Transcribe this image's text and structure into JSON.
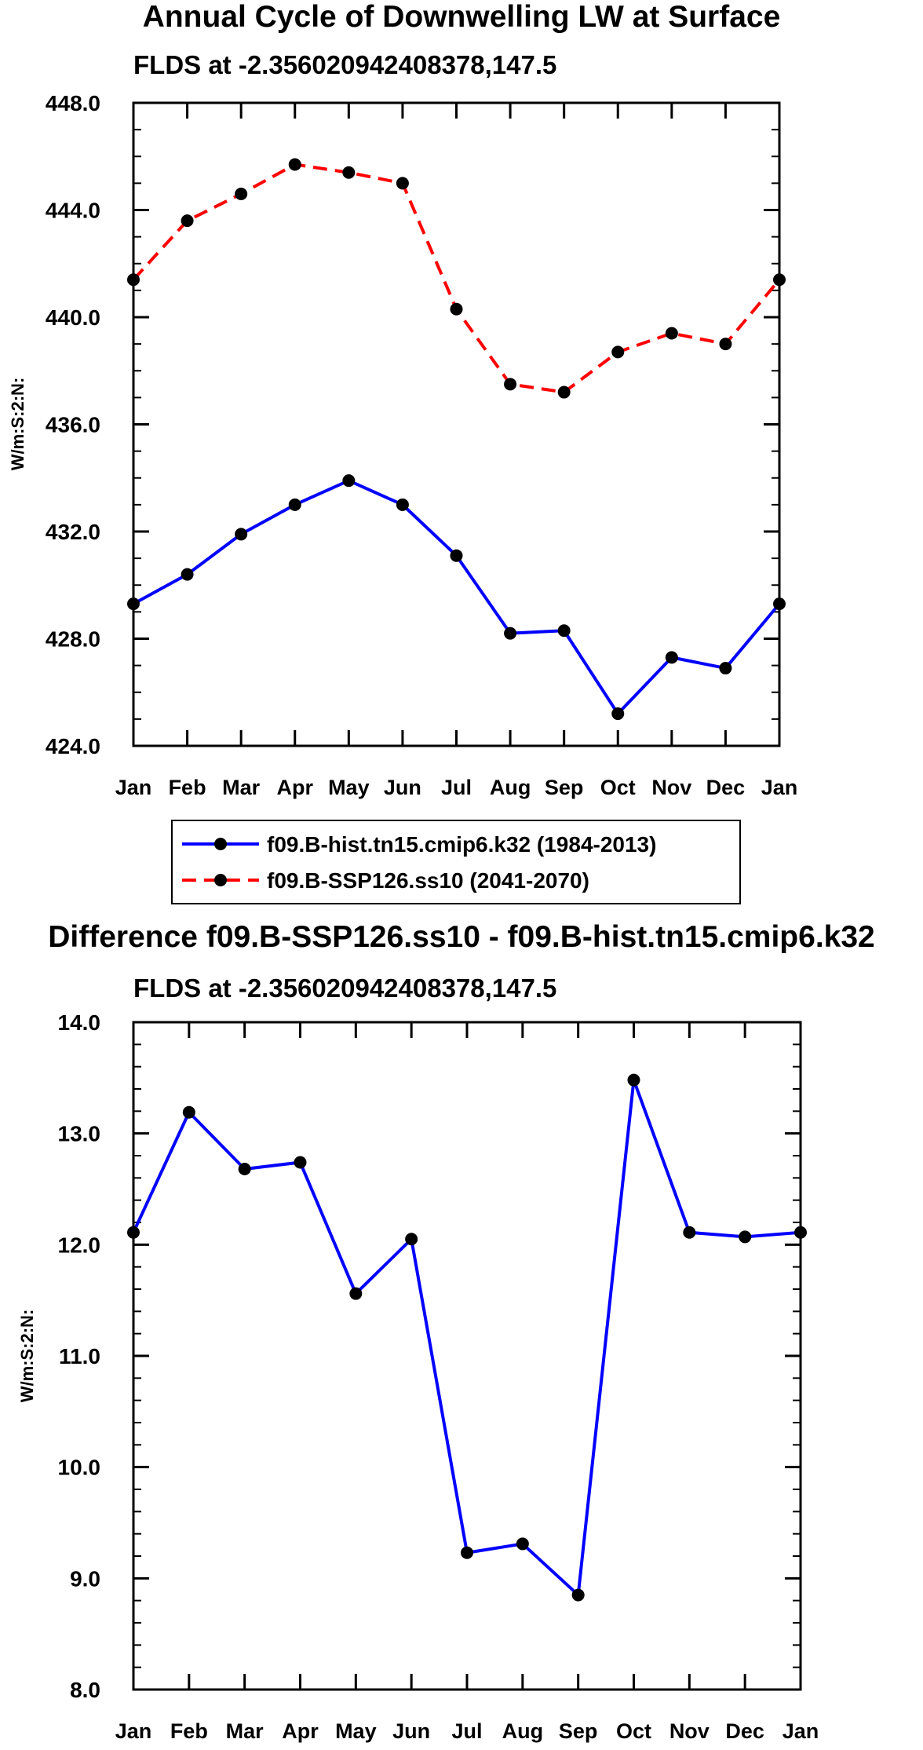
{
  "chart_data": [
    {
      "type": "line",
      "title": "Annual Cycle of Downwelling LW at Surface",
      "subtitle": "FLDS at -2.356020942408378,147.5",
      "ylabel": "W/m:S:2:N:",
      "xlabel": "",
      "categories": [
        "Jan",
        "Feb",
        "Mar",
        "Apr",
        "May",
        "Jun",
        "Jul",
        "Aug",
        "Sep",
        "Oct",
        "Nov",
        "Dec",
        "Jan"
      ],
      "ylim": [
        424.0,
        448.0
      ],
      "yticks": [
        "424.0",
        "428.0",
        "432.0",
        "436.0",
        "440.0",
        "444.0",
        "448.0"
      ],
      "series": [
        {
          "name": "f09.B-hist.tn15.cmip6.k32 (1984-2013)",
          "color": "#0000ff",
          "dash": "solid",
          "values": [
            429.3,
            430.4,
            431.9,
            433.0,
            433.9,
            433.0,
            431.1,
            428.2,
            428.3,
            425.2,
            427.3,
            426.9,
            429.3
          ]
        },
        {
          "name": "f09.B-SSP126.ss10 (2041-2070)",
          "color": "#ff0000",
          "dash": "dashed",
          "values": [
            441.4,
            443.6,
            444.6,
            445.7,
            445.4,
            445.0,
            440.3,
            437.5,
            437.2,
            438.7,
            439.4,
            439.0,
            441.4
          ]
        }
      ],
      "legend_position": "below",
      "grid": false
    },
    {
      "type": "line",
      "title": "Difference f09.B-SSP126.ss10 - f09.B-hist.tn15.cmip6.k32",
      "subtitle": "FLDS at -2.356020942408378,147.5",
      "ylabel": "W/m:S:2:N:",
      "xlabel": "",
      "categories": [
        "Jan",
        "Feb",
        "Mar",
        "Apr",
        "May",
        "Jun",
        "Jul",
        "Aug",
        "Sep",
        "Oct",
        "Nov",
        "Dec",
        "Jan"
      ],
      "ylim": [
        8.0,
        14.0
      ],
      "yticks": [
        "8.0",
        "9.0",
        "10.0",
        "11.0",
        "12.0",
        "13.0",
        "14.0"
      ],
      "series": [
        {
          "color": "#0000ff",
          "dash": "solid",
          "values": [
            12.11,
            13.19,
            12.68,
            12.74,
            11.56,
            12.05,
            9.23,
            9.31,
            8.85,
            13.48,
            12.11,
            12.07,
            12.11
          ]
        }
      ],
      "grid": false
    }
  ]
}
